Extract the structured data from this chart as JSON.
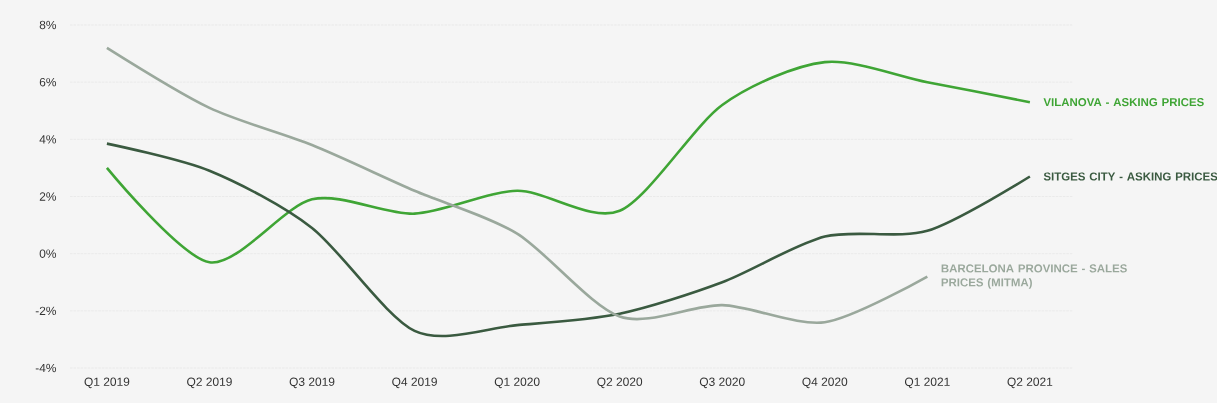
{
  "chart_data": {
    "type": "line",
    "categories": [
      "Q1 2019",
      "Q2 2019",
      "Q3 2019",
      "Q4 2019",
      "Q1 2020",
      "Q2 2020",
      "Q3 2020",
      "Q4 2020",
      "Q1 2021",
      "Q2 2021"
    ],
    "series": [
      {
        "name": "VILANOVA - ASKING PRICES",
        "color": "#3fa535",
        "values": [
          3.0,
          -0.3,
          1.9,
          1.4,
          2.2,
          1.5,
          5.2,
          6.7,
          6.0,
          5.3
        ]
      },
      {
        "name": "SITGES CITY - ASKING PRICES",
        "color": "#3a5a40",
        "values": [
          3.85,
          2.9,
          0.9,
          -2.7,
          -2.5,
          -2.1,
          -1.0,
          0.6,
          0.8,
          2.7
        ]
      },
      {
        "name": "BARCELONA PROVINCE - SALES PRICES (MITMA)",
        "color": "#9aa89c",
        "values": [
          7.2,
          5.1,
          3.8,
          2.2,
          0.7,
          -2.2,
          -1.8,
          -2.4,
          -0.8,
          null
        ]
      }
    ],
    "ylim": [
      -4,
      8
    ],
    "yticks": [
      {
        "value": -4,
        "label": "-4%"
      },
      {
        "value": -2,
        "label": "-2%"
      },
      {
        "value": 0,
        "label": "0%"
      },
      {
        "value": 2,
        "label": "2%"
      },
      {
        "value": 4,
        "label": "4%"
      },
      {
        "value": 6,
        "label": "6%"
      },
      {
        "value": 8,
        "label": "8%"
      }
    ],
    "grid": "y",
    "marker": "none",
    "line_style": "solid"
  }
}
